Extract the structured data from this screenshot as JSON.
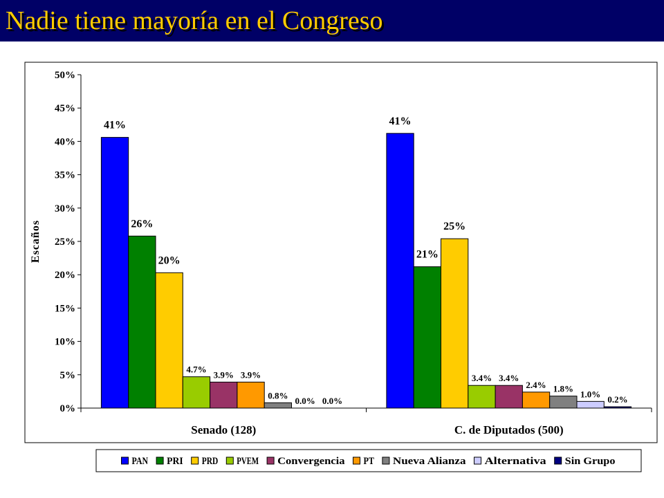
{
  "header": {
    "title": "Nadie tiene mayoría en el Congreso",
    "background": "#000066",
    "title_color": "#ffcc00"
  },
  "chart_data": {
    "type": "bar",
    "title": "Nadie tiene mayoría en el Congreso",
    "xlabel": "",
    "ylabel": "Escaños",
    "ylim": [
      0,
      50
    ],
    "y_ticks": [
      "0%",
      "5%",
      "10%",
      "15%",
      "20%",
      "25%",
      "30%",
      "35%",
      "40%",
      "45%",
      "50%"
    ],
    "grid": false,
    "legend_position": "bottom",
    "categories": [
      "Senado (128)",
      "C. de Diputados (500)"
    ],
    "series": [
      {
        "name": "PAN",
        "color": "#0000ff",
        "values": [
          40.6,
          41.2
        ],
        "labels": [
          "41%",
          "41%"
        ]
      },
      {
        "name": "PRI",
        "color": "#008000",
        "values": [
          25.8,
          21.2
        ],
        "labels": [
          "26%",
          "21%"
        ]
      },
      {
        "name": "PRD",
        "color": "#ffcc00",
        "values": [
          20.3,
          25.4
        ],
        "labels": [
          "20%",
          "25%"
        ]
      },
      {
        "name": "PVEM",
        "color": "#99cc00",
        "values": [
          4.7,
          3.4
        ],
        "labels": [
          "4.7%",
          "3.4%"
        ]
      },
      {
        "name": "Convergencia",
        "color": "#993366",
        "values": [
          3.9,
          3.4
        ],
        "labels": [
          "3.9%",
          "3.4%"
        ]
      },
      {
        "name": "PT",
        "color": "#ff9900",
        "values": [
          3.9,
          2.4
        ],
        "labels": [
          "3.9%",
          "2.4%"
        ]
      },
      {
        "name": "Nueva Alianza",
        "color": "#808080",
        "values": [
          0.8,
          1.8
        ],
        "labels": [
          "0.8%",
          "1.8%"
        ]
      },
      {
        "name": "Alternativa",
        "color": "#ccccff",
        "values": [
          0.0,
          1.0
        ],
        "labels": [
          "0.0%",
          "1.0%"
        ]
      },
      {
        "name": "Sin Grupo",
        "color": "#000080",
        "values": [
          0.0,
          0.2
        ],
        "labels": [
          "0.0%",
          "0.2%"
        ]
      }
    ]
  }
}
